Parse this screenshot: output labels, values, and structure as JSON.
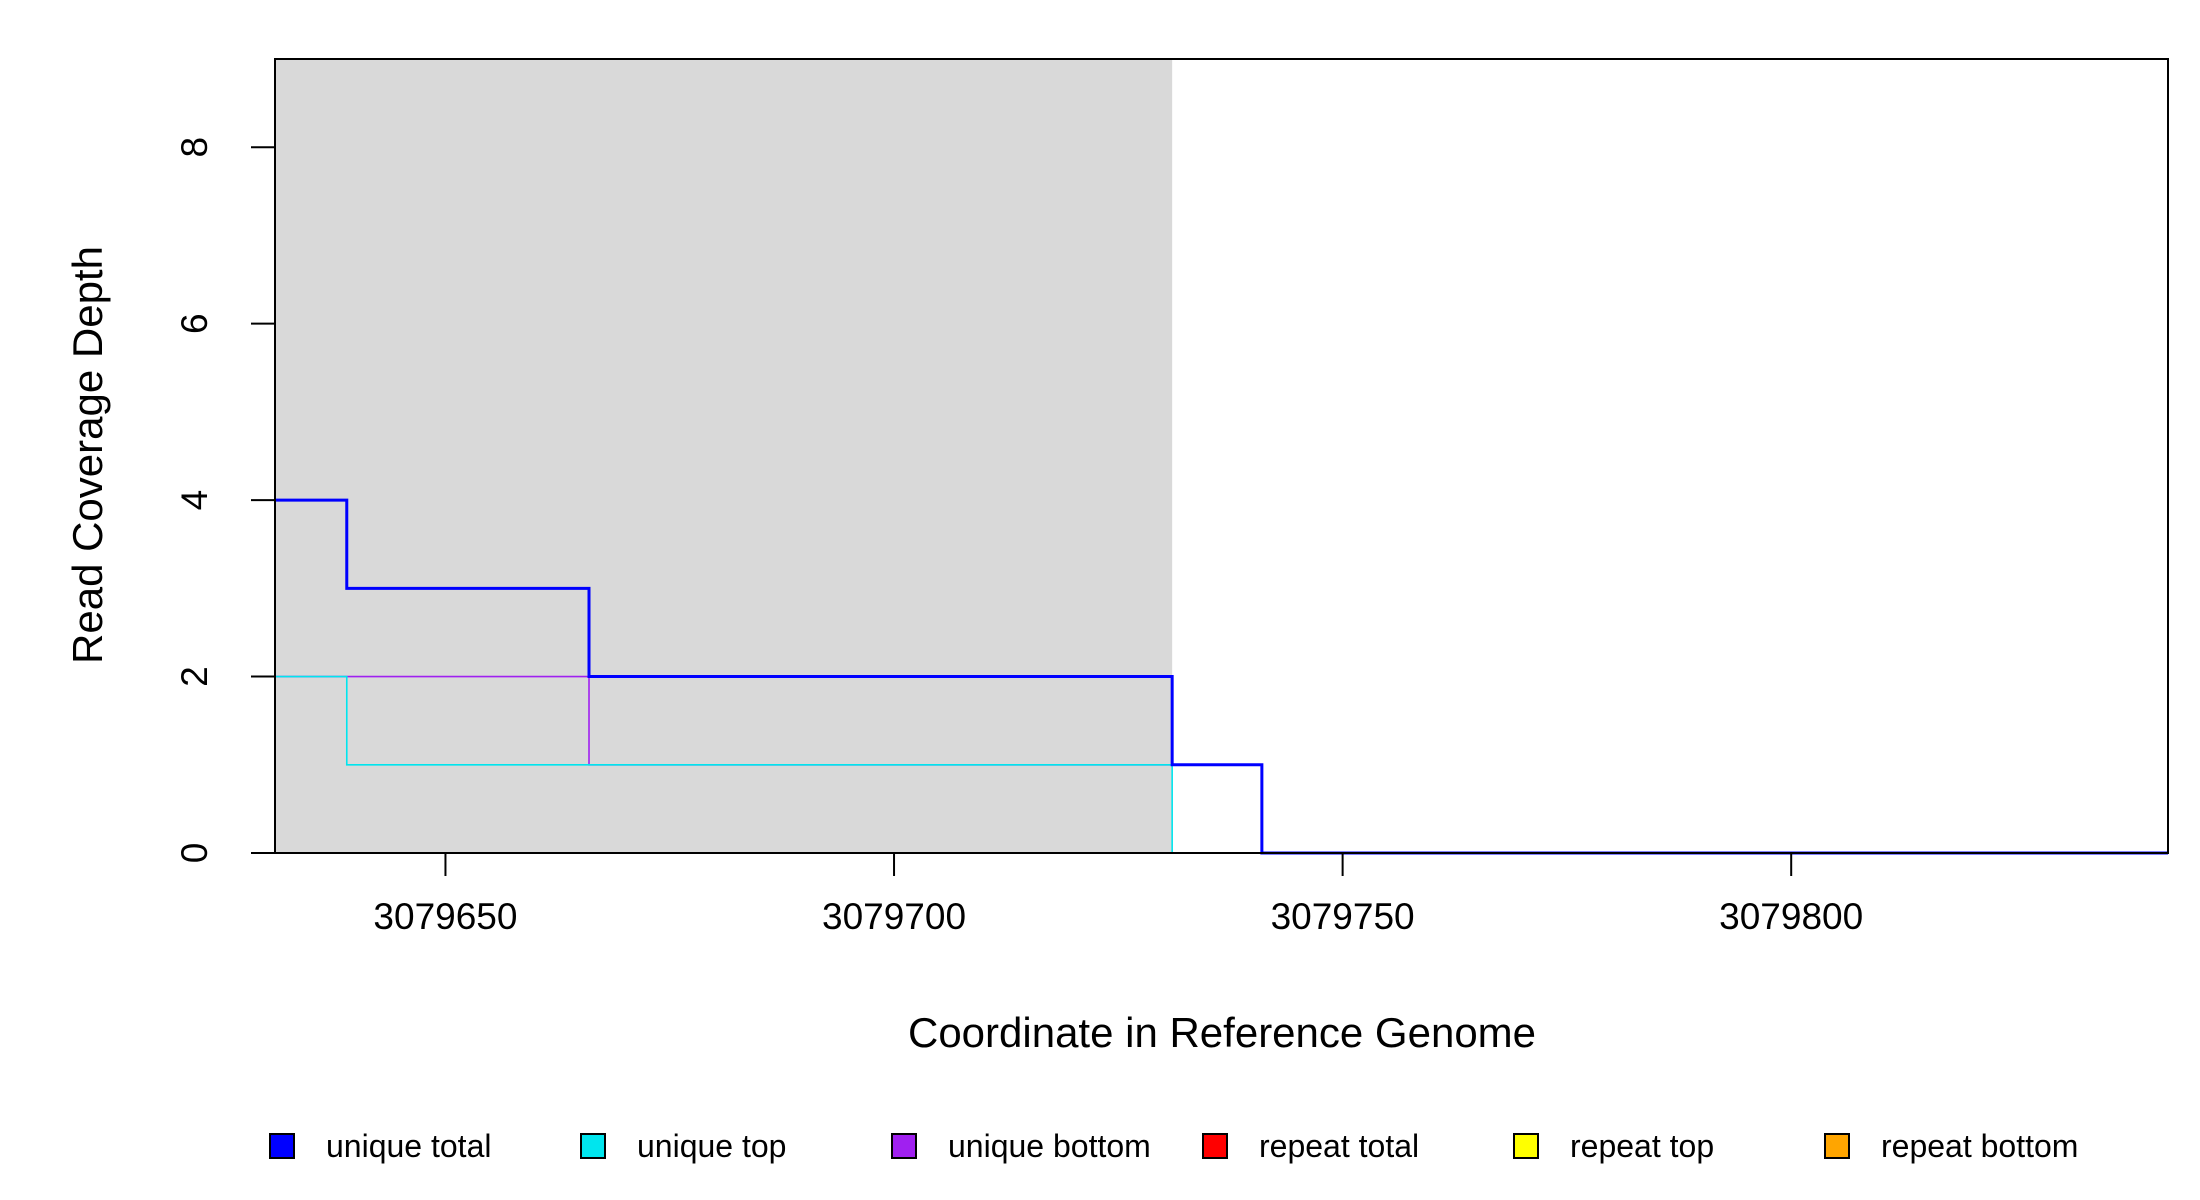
{
  "chart_data": {
    "type": "line",
    "xlabel": "Coordinate in Reference Genome",
    "ylabel": "Read Coverage Depth",
    "xlim": [
      3079631,
      3079842
    ],
    "ylim": [
      0,
      9
    ],
    "x_ticks": [
      3079650,
      3079700,
      3079750,
      3079800
    ],
    "x_tick_labels": [
      "3079650",
      "3079700",
      "3079750",
      "3079800"
    ],
    "y_ticks": [
      0,
      2,
      4,
      6,
      8
    ],
    "y_tick_labels": [
      "0",
      "2",
      "4",
      "6",
      "8"
    ],
    "grid": false,
    "shaded_region": {
      "x_start": 3079631,
      "x_end": 3079731,
      "color": "#d9d9d9"
    },
    "legend_position": "bottom",
    "series": [
      {
        "name": "unique total",
        "color": "#0000ff",
        "steps": [
          [
            3079631,
            4
          ],
          [
            3079639,
            3
          ],
          [
            3079666,
            2
          ],
          [
            3079731,
            1
          ],
          [
            3079741,
            0
          ],
          [
            3079842,
            0
          ]
        ]
      },
      {
        "name": "unique top",
        "color": "#00e5ee",
        "steps": [
          [
            3079631,
            2
          ],
          [
            3079639,
            1
          ],
          [
            3079731,
            0
          ],
          [
            3079842,
            0
          ]
        ]
      },
      {
        "name": "unique bottom",
        "color": "#a020f0",
        "steps": [
          [
            3079631,
            2
          ],
          [
            3079666,
            1
          ],
          [
            3079741,
            0
          ],
          [
            3079842,
            0
          ]
        ]
      },
      {
        "name": "repeat total",
        "color": "#ff0000",
        "steps": [
          [
            3079631,
            0
          ],
          [
            3079842,
            0
          ]
        ]
      },
      {
        "name": "repeat top",
        "color": "#ffff00",
        "steps": [
          [
            3079631,
            0
          ],
          [
            3079842,
            0
          ]
        ]
      },
      {
        "name": "repeat bottom",
        "color": "#ffa500",
        "steps": [
          [
            3079631,
            0
          ],
          [
            3079842,
            0
          ]
        ]
      }
    ]
  }
}
